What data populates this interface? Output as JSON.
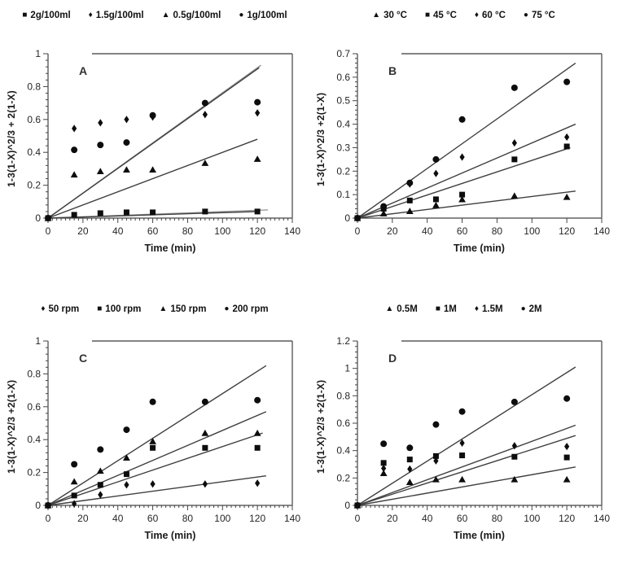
{
  "figure": {
    "background": "#ffffff",
    "text_color": "#111111",
    "axis_color": "#444444",
    "marker_color": "#0d0d0d",
    "trendline_color": "#3f3f3f"
  },
  "chart_data": [
    {
      "type": "scatter",
      "panel": "A",
      "xlabel": "Time (min)",
      "ylabel": "1-3(1-X)^2/3 + 2(1-X)",
      "x": [
        0,
        15,
        30,
        45,
        60,
        90,
        120
      ],
      "xlim": [
        0,
        140
      ],
      "xtick_step": 20,
      "xminor_per_step": 8,
      "ylim": [
        0,
        1
      ],
      "ytick_step": 0.2,
      "yminor_per_step": 5,
      "grid": false,
      "legend_position": "top",
      "series": [
        {
          "name": "2g/100ml",
          "marker": "square",
          "values": [
            0,
            0.02,
            0.03,
            0.035,
            0.035,
            0.04,
            0.04
          ]
        },
        {
          "name": "1.5g/100ml",
          "marker": "diamond",
          "values": [
            0,
            0.545,
            0.58,
            0.6,
            0.615,
            0.63,
            0.64
          ]
        },
        {
          "name": "0.5g/100ml",
          "marker": "triangle",
          "values": [
            0,
            0.265,
            0.285,
            0.295,
            0.295,
            0.335,
            0.36
          ]
        },
        {
          "name": "1g/100ml",
          "marker": "circle",
          "values": [
            0,
            0.415,
            0.445,
            0.46,
            0.625,
            0.7,
            0.705
          ]
        }
      ],
      "trendlines": [
        {
          "x": [
            0,
            122
          ],
          "y": [
            0,
            0.93
          ],
          "color": "#8a8a8a"
        },
        {
          "x": [
            0,
            121
          ],
          "y": [
            0,
            0.915
          ],
          "color": "#3f3f3f"
        },
        {
          "x": [
            0,
            120
          ],
          "y": [
            0,
            0.48
          ],
          "color": "#3f3f3f"
        },
        {
          "x": [
            0,
            126
          ],
          "y": [
            0,
            0.05
          ],
          "color": "#9a9a9a"
        },
        {
          "x": [
            0,
            120
          ],
          "y": [
            0,
            0.04
          ],
          "color": "#3f3f3f"
        }
      ]
    },
    {
      "type": "scatter",
      "panel": "B",
      "xlabel": "Time (min)",
      "ylabel": "1-3(1-X)^2/3 +2(1-X)",
      "x": [
        0,
        15,
        30,
        45,
        60,
        90,
        120
      ],
      "xlim": [
        0,
        140
      ],
      "xtick_step": 20,
      "xminor_per_step": 1,
      "ylim": [
        0,
        0.7
      ],
      "ytick_step": 0.1,
      "yminor_per_step": 5,
      "grid": false,
      "legend_position": "top",
      "series": [
        {
          "name": "30 °C",
          "marker": "triangle",
          "values": [
            0,
            0.02,
            0.03,
            0.055,
            0.08,
            0.095,
            0.09
          ]
        },
        {
          "name": "45 °C",
          "marker": "square",
          "values": [
            0,
            0.04,
            0.075,
            0.08,
            0.1,
            0.25,
            0.305
          ]
        },
        {
          "name": "60 °C",
          "marker": "diamond",
          "values": [
            0,
            0.045,
            0.145,
            0.19,
            0.26,
            0.32,
            0.345
          ]
        },
        {
          "name": "75 °C",
          "marker": "circle",
          "values": [
            0,
            0.05,
            0.15,
            0.25,
            0.42,
            0.555,
            0.58
          ]
        }
      ],
      "trendlines": [
        {
          "x": [
            0,
            125
          ],
          "y": [
            0,
            0.66
          ],
          "color": "#3f3f3f"
        },
        {
          "x": [
            0,
            125
          ],
          "y": [
            0,
            0.4
          ],
          "color": "#3f3f3f"
        },
        {
          "x": [
            0,
            122
          ],
          "y": [
            0,
            0.3
          ],
          "color": "#3f3f3f"
        },
        {
          "x": [
            0,
            125
          ],
          "y": [
            0,
            0.115
          ],
          "color": "#3f3f3f"
        }
      ]
    },
    {
      "type": "scatter",
      "panel": "C",
      "xlabel": "Time (min)",
      "ylabel": "1-3(1-X)^2/3 +2(1-X)",
      "x": [
        0,
        15,
        30,
        45,
        60,
        90,
        120
      ],
      "xlim": [
        0,
        140
      ],
      "xtick_step": 20,
      "xminor_per_step": 8,
      "ylim": [
        0,
        1
      ],
      "ytick_step": 0.2,
      "yminor_per_step": 5,
      "grid": false,
      "legend_position": "top",
      "series": [
        {
          "name": "50 rpm",
          "marker": "diamond",
          "values": [
            0,
            0.01,
            0.065,
            0.125,
            0.13,
            0.13,
            0.135
          ]
        },
        {
          "name": "100 rpm",
          "marker": "square",
          "values": [
            0,
            0.06,
            0.125,
            0.19,
            0.35,
            0.35,
            0.35
          ]
        },
        {
          "name": "150 rpm",
          "marker": "triangle",
          "values": [
            0,
            0.145,
            0.21,
            0.29,
            0.39,
            0.44,
            0.44
          ]
        },
        {
          "name": "200 rpm",
          "marker": "circle",
          "values": [
            0,
            0.25,
            0.34,
            0.46,
            0.63,
            0.63,
            0.64
          ]
        }
      ],
      "trendlines": [
        {
          "x": [
            0,
            125
          ],
          "y": [
            0,
            0.85
          ],
          "color": "#3f3f3f"
        },
        {
          "x": [
            0,
            125
          ],
          "y": [
            0,
            0.57
          ],
          "color": "#3f3f3f"
        },
        {
          "x": [
            0,
            123
          ],
          "y": [
            0,
            0.44
          ],
          "color": "#3f3f3f"
        },
        {
          "x": [
            0,
            125
          ],
          "y": [
            0,
            0.18
          ],
          "color": "#3f3f3f"
        }
      ]
    },
    {
      "type": "scatter",
      "panel": "D",
      "xlabel": "Time (min)",
      "ylabel": "1-3(1-X)^2/3 +2(1-X)",
      "x": [
        0,
        15,
        30,
        45,
        60,
        90,
        120
      ],
      "xlim": [
        0,
        140
      ],
      "xtick_step": 20,
      "xminor_per_step": 8,
      "ylim": [
        0,
        1.2
      ],
      "ytick_step": 0.2,
      "yminor_per_step": 5,
      "grid": false,
      "legend_position": "top",
      "series": [
        {
          "name": "0.5M",
          "marker": "triangle",
          "values": [
            0,
            0.235,
            0.17,
            0.19,
            0.19,
            0.19,
            0.19
          ]
        },
        {
          "name": "1M",
          "marker": "square",
          "values": [
            0,
            0.31,
            0.335,
            0.36,
            0.365,
            0.355,
            0.35
          ]
        },
        {
          "name": "1.5M",
          "marker": "diamond",
          "values": [
            0,
            0.27,
            0.265,
            0.325,
            0.455,
            0.435,
            0.43
          ]
        },
        {
          "name": "2M",
          "marker": "circle",
          "values": [
            0,
            0.45,
            0.42,
            0.59,
            0.685,
            0.755,
            0.78
          ]
        }
      ],
      "trendlines": [
        {
          "x": [
            0,
            125
          ],
          "y": [
            0,
            1.01
          ],
          "color": "#3f3f3f"
        },
        {
          "x": [
            0,
            125
          ],
          "y": [
            0,
            0.585
          ],
          "color": "#3f3f3f"
        },
        {
          "x": [
            0,
            125
          ],
          "y": [
            0,
            0.51
          ],
          "color": "#3f3f3f"
        },
        {
          "x": [
            0,
            125
          ],
          "y": [
            0,
            0.28
          ],
          "color": "#3f3f3f"
        }
      ]
    }
  ]
}
